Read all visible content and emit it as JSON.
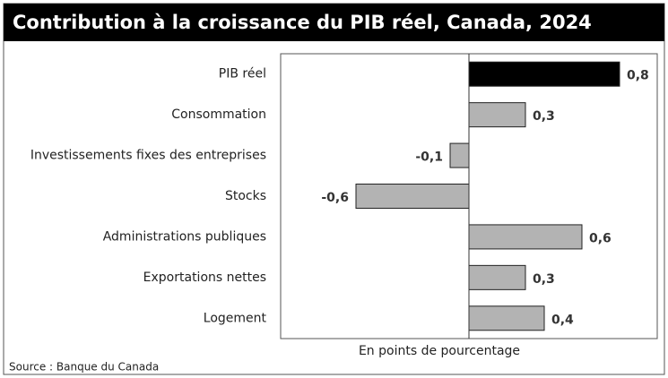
{
  "chart_data": {
    "type": "hbar",
    "title": "Contribution à la croissance du PIB réel, Canada, 2024",
    "categories": [
      "PIB réel",
      "Consommation",
      "Investissements fixes des entreprises",
      "Stocks",
      "Administrations publiques",
      "Exportations nettes",
      "Logement"
    ],
    "values": [
      0.8,
      0.3,
      -0.1,
      -0.6,
      0.6,
      0.3,
      0.4
    ],
    "value_labels": [
      "0,8",
      "0,3",
      "-0,1",
      "-0,6",
      "0,6",
      "0,3",
      "0,4"
    ],
    "colors": [
      "#000000",
      "#b3b3b3",
      "#b3b3b3",
      "#b3b3b3",
      "#b3b3b3",
      "#b3b3b3",
      "#b3b3b3"
    ],
    "xlim": [
      -1,
      1
    ],
    "xlabel": "En points de pourcentage",
    "source": "Source : Banque du Canada"
  }
}
